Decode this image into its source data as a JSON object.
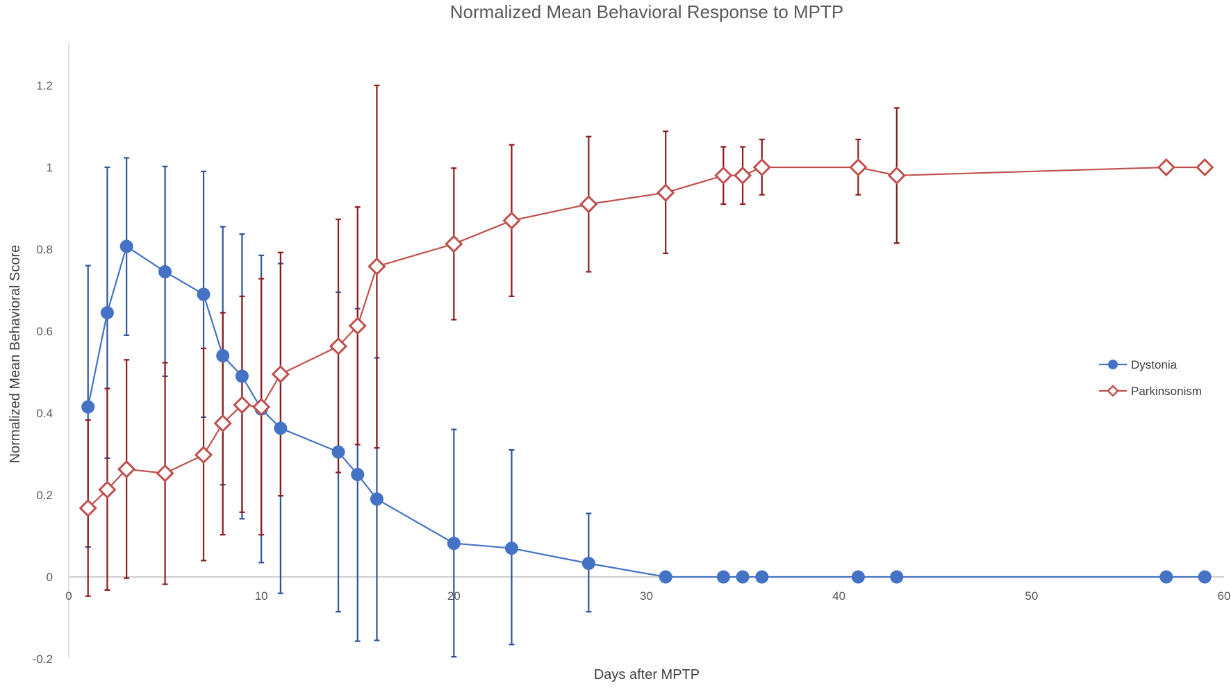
{
  "chart_data": {
    "type": "line",
    "title": "Normalized Mean Behavioral Response to MPTP",
    "xlabel": "Days after MPTP",
    "ylabel": "Normalized Mean Behavioral Score",
    "xlim": [
      0,
      60
    ],
    "ylim": [
      -0.2,
      1.3
    ],
    "xticks": [
      0,
      10,
      20,
      30,
      40,
      50,
      60
    ],
    "xtick_labels": [
      "0",
      "10",
      "20",
      "30",
      "40",
      "50",
      "60"
    ],
    "yticks": [
      -0.2,
      0,
      0.2,
      0.4,
      0.6,
      0.8,
      1,
      1.2
    ],
    "ytick_labels": [
      "-0.2",
      "0",
      "0.2",
      "0.4",
      "0.6",
      "0.8",
      "1",
      "1.2"
    ],
    "legend_position": "right",
    "series": [
      {
        "name": "Dystonia",
        "marker": "circle",
        "color": "#4472C4",
        "bar_color": "#2F5597",
        "x": [
          1,
          2,
          3,
          5,
          7,
          8,
          9,
          10,
          11,
          14,
          15,
          16,
          20,
          23,
          27,
          31,
          34,
          35,
          36,
          41,
          43,
          57,
          59
        ],
        "y": [
          0.415,
          0.645,
          0.807,
          0.745,
          0.69,
          0.54,
          0.49,
          0.41,
          0.363,
          0.305,
          0.25,
          0.19,
          0.082,
          0.07,
          0.033,
          0,
          0,
          0,
          0,
          0,
          0,
          0,
          0
        ],
        "err_low": [
          0.073,
          0.29,
          0.59,
          0.49,
          0.39,
          0.225,
          0.142,
          0.035,
          -0.04,
          -0.085,
          -0.157,
          -0.155,
          -0.195,
          -0.165,
          -0.085,
          null,
          null,
          null,
          null,
          null,
          null,
          null,
          null
        ],
        "err_high": [
          0.76,
          1.0,
          1.023,
          1.002,
          0.99,
          0.855,
          0.837,
          0.785,
          0.765,
          0.695,
          0.655,
          0.535,
          0.36,
          0.31,
          0.155,
          null,
          null,
          null,
          null,
          null,
          null,
          null,
          null
        ]
      },
      {
        "name": "Parkinsonism",
        "marker": "diamond",
        "color": "#C0504D",
        "bar_color": "#8B1A1A",
        "x": [
          1,
          2,
          3,
          5,
          7,
          8,
          9,
          10,
          11,
          14,
          15,
          16,
          20,
          23,
          27,
          31,
          34,
          35,
          36,
          41,
          43,
          57,
          59
        ],
        "y": [
          0.168,
          0.213,
          0.263,
          0.253,
          0.298,
          0.375,
          0.42,
          0.415,
          0.495,
          0.563,
          0.613,
          0.758,
          0.813,
          0.87,
          0.91,
          0.938,
          0.98,
          0.98,
          1.0,
          1.0,
          0.98,
          1.0,
          1.0
        ],
        "err_low": [
          -0.047,
          -0.032,
          -0.003,
          -0.018,
          0.04,
          0.103,
          0.158,
          0.103,
          0.198,
          0.255,
          0.323,
          0.315,
          0.628,
          0.685,
          0.745,
          0.79,
          0.91,
          0.91,
          0.933,
          0.933,
          0.815,
          null,
          null
        ],
        "err_high": [
          0.383,
          0.46,
          0.53,
          0.523,
          0.558,
          0.645,
          0.685,
          0.728,
          0.792,
          0.873,
          0.903,
          1.2,
          0.998,
          1.055,
          1.075,
          1.088,
          1.05,
          1.05,
          1.068,
          1.068,
          1.145,
          null,
          null
        ]
      }
    ]
  }
}
